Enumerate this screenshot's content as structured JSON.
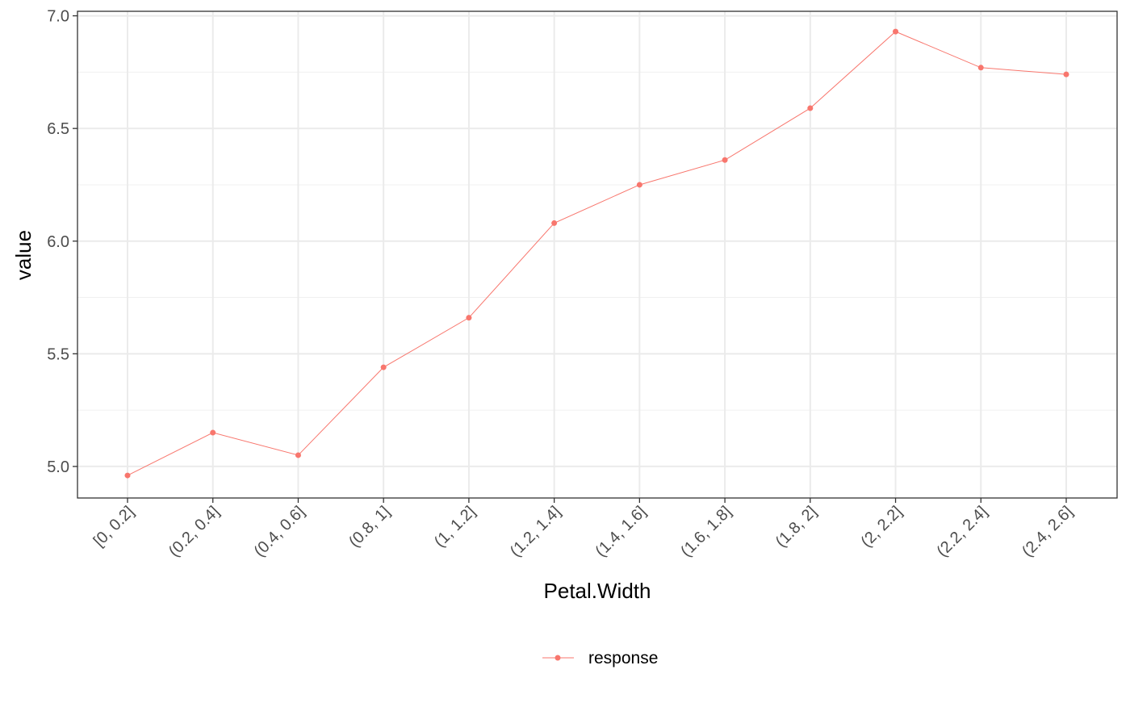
{
  "chart_data": {
    "type": "line",
    "title": "",
    "xlabel": "Petal.Width",
    "ylabel": "value",
    "categories": [
      "[0, 0.2]",
      "(0.2, 0.4]",
      "(0.4, 0.6]",
      "(0.8, 1]",
      "(1, 1.2]",
      "(1.2, 1.4]",
      "(1.4, 1.6]",
      "(1.6, 1.8]",
      "(1.8, 2]",
      "(2, 2.2]",
      "(2.2, 2.4]",
      "(2.4, 2.6]"
    ],
    "series": [
      {
        "name": "response",
        "color": "#F8766D",
        "values": [
          4.96,
          5.15,
          5.05,
          5.44,
          5.66,
          6.08,
          6.25,
          6.36,
          6.59,
          6.93,
          6.77,
          6.74
        ]
      }
    ],
    "y_ticks": [
      "5.0",
      "5.5",
      "6.0",
      "6.5",
      "7.0"
    ],
    "ylim": [
      4.86,
      7.02
    ],
    "grid": true,
    "legend_position": "bottom"
  }
}
